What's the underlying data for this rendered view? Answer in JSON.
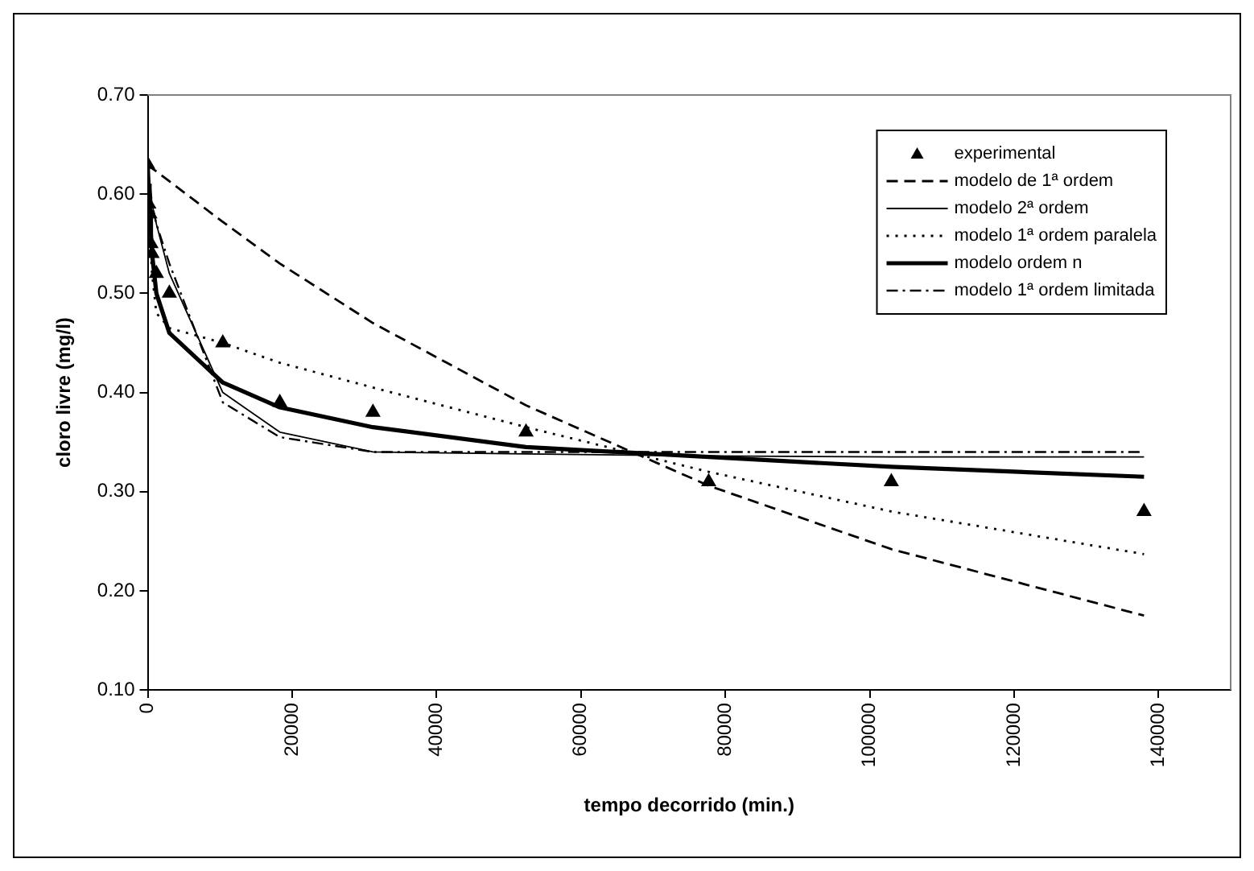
{
  "chart_data": {
    "type": "line",
    "xlabel": "tempo decorrido (min.)",
    "ylabel": "cloro livre (mg/l)",
    "xlim": [
      0,
      150000
    ],
    "xticks": [
      0,
      20000,
      40000,
      60000,
      80000,
      100000,
      120000,
      140000
    ],
    "ylim": [
      0.1,
      0.7
    ],
    "yticks": [
      {
        "value": 0.1,
        "label": "0.10"
      },
      {
        "value": 0.2,
        "label": "0.20"
      },
      {
        "value": 0.3,
        "label": "0.30"
      },
      {
        "value": 0.4,
        "label": "0.40"
      },
      {
        "value": 0.5,
        "label": "0.50"
      },
      {
        "value": 0.6,
        "label": "0.60"
      },
      {
        "value": 0.7,
        "label": "0.70"
      }
    ],
    "grid": false,
    "legend": "top right",
    "series": [
      {
        "name": "experimental",
        "type": "scatter",
        "marker": "triangle",
        "color": "#000000",
        "x": [
          0,
          150,
          300,
          450,
          600,
          1200,
          3000,
          10400,
          18300,
          31200,
          52400,
          77700,
          103000,
          138000
        ],
        "values": [
          0.63,
          0.59,
          0.58,
          0.55,
          0.54,
          0.52,
          0.5,
          0.45,
          0.39,
          0.38,
          0.36,
          0.31,
          0.31,
          0.28
        ]
      },
      {
        "name": "modelo de 1ª ordem",
        "type": "line",
        "marker": "none",
        "line_style": "dashed",
        "color": "#000000",
        "x": [
          0,
          150,
          300,
          450,
          600,
          1200,
          3000,
          10400,
          18300,
          31200,
          52400,
          77700,
          103000,
          138000
        ],
        "values": [
          0.63,
          0.629,
          0.628,
          0.627,
          0.626,
          0.623,
          0.613,
          0.572,
          0.53,
          0.47,
          0.387,
          0.306,
          0.242,
          0.175
        ]
      },
      {
        "name": "modelo 2ª ordem",
        "type": "line",
        "marker": "none",
        "line_style": "solid",
        "color": "#000000",
        "x": [
          0,
          150,
          300,
          450,
          600,
          1200,
          3000,
          10400,
          18300,
          31200,
          52400,
          77700,
          103000,
          138000
        ],
        "values": [
          0.63,
          0.62,
          0.61,
          0.6,
          0.59,
          0.57,
          0.52,
          0.4,
          0.36,
          0.34,
          0.338,
          0.336,
          0.335,
          0.335
        ]
      },
      {
        "name": "modelo 1ª ordem paralela",
        "type": "line",
        "marker": "none",
        "line_style": "dotted",
        "color": "#000000",
        "x": [
          0,
          150,
          300,
          450,
          600,
          1200,
          3000,
          10400,
          18300,
          31200,
          52400,
          77700,
          103000,
          138000
        ],
        "values": [
          0.63,
          0.6,
          0.57,
          0.54,
          0.52,
          0.48,
          0.465,
          0.45,
          0.43,
          0.405,
          0.365,
          0.32,
          0.28,
          0.237
        ]
      },
      {
        "name": "modelo ordem n",
        "type": "line",
        "marker": "none",
        "line_style": "solid",
        "color": "#000000",
        "x": [
          0,
          150,
          300,
          450,
          600,
          1200,
          3000,
          10400,
          18300,
          31200,
          52400,
          77700,
          103000,
          138000
        ],
        "values": [
          0.63,
          0.6,
          0.58,
          0.56,
          0.54,
          0.5,
          0.46,
          0.41,
          0.385,
          0.365,
          0.345,
          0.335,
          0.325,
          0.315
        ]
      },
      {
        "name": "modelo 1ª ordem limitada",
        "type": "line",
        "marker": "none",
        "line_style": "dashdot",
        "color": "#000000",
        "x": [
          0,
          150,
          300,
          450,
          600,
          1200,
          3000,
          10400,
          18300,
          31200,
          52400,
          77700,
          103000,
          138000
        ],
        "values": [
          0.63,
          0.62,
          0.61,
          0.6,
          0.59,
          0.57,
          0.53,
          0.39,
          0.355,
          0.34,
          0.34,
          0.34,
          0.34,
          0.34
        ]
      }
    ]
  }
}
